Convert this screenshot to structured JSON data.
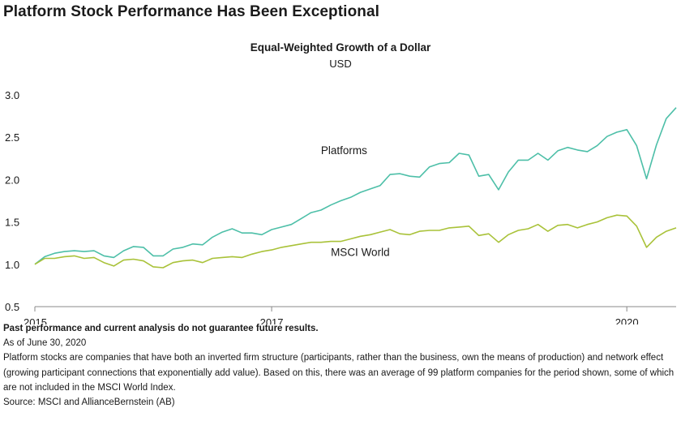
{
  "title": "Platform Stock Performance Has Been Exceptional",
  "notes": {
    "disclaimer": "Past performance and current analysis do not guarantee future results.",
    "as_of": "As of June 30, 2020",
    "definition": "Platform stocks are companies that have both an inverted firm structure (participants, rather than the business, own the means of production) and network effect (growing participant connections that exponentially add value).  Based on this, there was an average of 99 platform companies for the period shown, some of which are not included in the MSCI World Index.",
    "source": "Source: MSCI and AllianceBernstein (AB)"
  },
  "colors": {
    "platforms": "#4dbfa8",
    "msci": "#a9c239",
    "axis": "#888888"
  },
  "chart_data": {
    "type": "line",
    "title": "Equal-Weighted Growth of a Dollar",
    "subtitle": "USD",
    "x_tick_labels": [
      "2015",
      "2017",
      "2020"
    ],
    "y_tick_labels": [
      "3.0",
      "2.5",
      "2.0",
      "1.5",
      "1.0",
      "0.5"
    ],
    "ylim": [
      0.5,
      3.0
    ],
    "xlim": [
      "2015-01",
      "2020-06"
    ],
    "grid": false,
    "x": [
      "2015-01",
      "2015-02",
      "2015-03",
      "2015-04",
      "2015-05",
      "2015-06",
      "2015-07",
      "2015-08",
      "2015-09",
      "2015-10",
      "2015-11",
      "2015-12",
      "2016-01",
      "2016-02",
      "2016-03",
      "2016-04",
      "2016-05",
      "2016-06",
      "2016-07",
      "2016-08",
      "2016-09",
      "2016-10",
      "2016-11",
      "2016-12",
      "2017-01",
      "2017-02",
      "2017-03",
      "2017-04",
      "2017-05",
      "2017-06",
      "2017-07",
      "2017-08",
      "2017-09",
      "2017-10",
      "2017-11",
      "2017-12",
      "2018-01",
      "2018-02",
      "2018-03",
      "2018-04",
      "2018-05",
      "2018-06",
      "2018-07",
      "2018-08",
      "2018-09",
      "2018-10",
      "2018-11",
      "2018-12",
      "2019-01",
      "2019-02",
      "2019-03",
      "2019-04",
      "2019-05",
      "2019-06",
      "2019-07",
      "2019-08",
      "2019-09",
      "2019-10",
      "2019-11",
      "2019-12",
      "2020-01",
      "2020-02",
      "2020-03",
      "2020-04",
      "2020-05",
      "2020-06"
    ],
    "series": [
      {
        "name": "Platforms",
        "values": [
          1.0,
          1.09,
          1.13,
          1.15,
          1.16,
          1.15,
          1.16,
          1.1,
          1.08,
          1.16,
          1.21,
          1.2,
          1.1,
          1.1,
          1.18,
          1.2,
          1.24,
          1.23,
          1.32,
          1.38,
          1.42,
          1.37,
          1.37,
          1.35,
          1.41,
          1.44,
          1.47,
          1.54,
          1.61,
          1.64,
          1.7,
          1.75,
          1.79,
          1.85,
          1.89,
          1.93,
          2.06,
          2.07,
          2.04,
          2.03,
          2.15,
          2.19,
          2.2,
          2.31,
          2.29,
          2.04,
          2.06,
          1.88,
          2.09,
          2.23,
          2.23,
          2.31,
          2.23,
          2.34,
          2.38,
          2.35,
          2.33,
          2.4,
          2.51,
          2.56,
          2.59,
          2.4,
          2.01,
          2.41,
          2.72,
          2.85
        ]
      },
      {
        "name": "MSCI World",
        "values": [
          1.0,
          1.07,
          1.07,
          1.09,
          1.1,
          1.07,
          1.08,
          1.02,
          0.98,
          1.05,
          1.06,
          1.04,
          0.97,
          0.96,
          1.02,
          1.04,
          1.05,
          1.02,
          1.07,
          1.08,
          1.09,
          1.08,
          1.12,
          1.15,
          1.17,
          1.2,
          1.22,
          1.24,
          1.26,
          1.26,
          1.27,
          1.27,
          1.3,
          1.33,
          1.35,
          1.38,
          1.41,
          1.36,
          1.35,
          1.39,
          1.4,
          1.4,
          1.43,
          1.44,
          1.45,
          1.34,
          1.36,
          1.26,
          1.35,
          1.4,
          1.42,
          1.47,
          1.39,
          1.46,
          1.47,
          1.43,
          1.47,
          1.5,
          1.55,
          1.58,
          1.57,
          1.45,
          1.2,
          1.32,
          1.39,
          1.43
        ]
      }
    ],
    "annotations": [
      {
        "text": "Platforms",
        "series": "Platforms"
      },
      {
        "text": "MSCI World",
        "series": "MSCI World"
      }
    ]
  }
}
